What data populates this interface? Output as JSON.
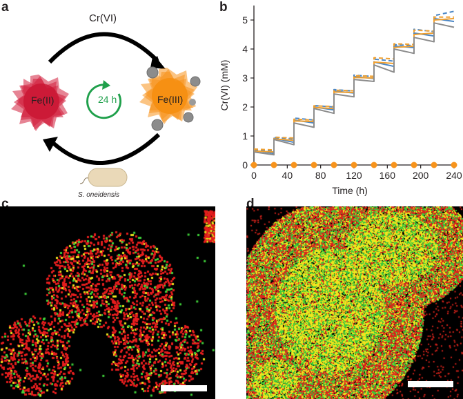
{
  "panels": {
    "a": {
      "letter": "a",
      "top_label": "Cr(VI)",
      "left_particle_label": "Fe(II)",
      "right_particle_label": "Fe(III)",
      "cycle_label": "24 h",
      "organism_label": "S. oneidensis",
      "colors": {
        "fe2": "#d21f3c",
        "fe3": "#f7941d",
        "arrow": "#000000",
        "cycle": "#1fa04b",
        "grey_particle": "#8c8c8c",
        "cell": "#ead9b8"
      }
    },
    "b": {
      "letter": "b"
    },
    "c": {
      "letter": "c",
      "colors": {
        "red": "#e41d1d",
        "green": "#3fd23a",
        "yellow": "#e8e21c"
      }
    },
    "d": {
      "letter": "d",
      "colors": {
        "red": "#d9241c",
        "green": "#39c93a",
        "yellow": "#f0e61e"
      }
    }
  },
  "chart_data": {
    "type": "line",
    "xlabel": "Time (h)",
    "ylabel": "Cr(VI) (mM)",
    "xlim": [
      0,
      240
    ],
    "ylim": [
      0,
      5.5
    ],
    "x_ticks": [
      0,
      40,
      80,
      120,
      160,
      200,
      240
    ],
    "x_tick_labels": [
      "0",
      "40",
      "80",
      "120",
      "160",
      "200",
      "240"
    ],
    "y_ticks": [
      0,
      1,
      2,
      3,
      4,
      5
    ],
    "y_tick_labels": [
      "0",
      "1",
      "2",
      "3",
      "4",
      "5"
    ],
    "series": [
      {
        "name": "blue solid",
        "color": "#4a86c5",
        "style": "solid",
        "x": [
          0,
          24,
          24,
          48,
          48,
          72,
          72,
          96,
          96,
          120,
          120,
          144,
          144,
          168,
          168,
          192,
          192,
          216,
          216,
          240
        ],
        "y": [
          0.5,
          0.4,
          0.92,
          0.78,
          1.55,
          1.45,
          2.0,
          1.9,
          2.55,
          2.48,
          3.05,
          2.98,
          3.55,
          3.4,
          4.1,
          4.05,
          4.55,
          4.45,
          5.05,
          4.95
        ]
      },
      {
        "name": "blue dashed",
        "color": "#4a86c5",
        "style": "dashed",
        "x": [
          0,
          24,
          24,
          48,
          48,
          72,
          72,
          96,
          96,
          120,
          120,
          144,
          144,
          168,
          168,
          192,
          192,
          216,
          216,
          240
        ],
        "y": [
          0.52,
          0.48,
          0.95,
          0.9,
          1.62,
          1.55,
          2.05,
          2.0,
          2.6,
          2.55,
          3.1,
          3.05,
          3.65,
          3.58,
          4.15,
          4.12,
          4.68,
          4.6,
          5.15,
          5.3
        ]
      },
      {
        "name": "orange solid",
        "color": "#f0a030",
        "style": "solid",
        "x": [
          0,
          24,
          24,
          48,
          48,
          72,
          72,
          96,
          96,
          120,
          120,
          144,
          144,
          168,
          168,
          192,
          192,
          216,
          216,
          240
        ],
        "y": [
          0.48,
          0.45,
          0.9,
          0.85,
          1.52,
          1.5,
          1.98,
          1.95,
          2.52,
          2.5,
          3.02,
          3.0,
          3.55,
          3.5,
          4.05,
          4.1,
          4.5,
          4.55,
          5.0,
          5.05
        ]
      },
      {
        "name": "orange dashed",
        "color": "#f0a030",
        "style": "dashed",
        "x": [
          0,
          24,
          24,
          48,
          48,
          72,
          72,
          96,
          96,
          120,
          120,
          144,
          144,
          168,
          168,
          192,
          192,
          216,
          216,
          240
        ],
        "y": [
          0.55,
          0.52,
          0.96,
          0.93,
          1.58,
          1.55,
          2.04,
          2.02,
          2.58,
          2.56,
          3.08,
          3.06,
          3.7,
          3.66,
          4.18,
          4.16,
          4.65,
          4.62,
          5.1,
          5.1
        ]
      },
      {
        "name": "grey solid",
        "color": "#8c8c8c",
        "style": "solid",
        "x": [
          0,
          24,
          24,
          48,
          48,
          72,
          72,
          96,
          96,
          120,
          120,
          144,
          144,
          168,
          168,
          192,
          192,
          216,
          216,
          240
        ],
        "y": [
          0.45,
          0.35,
          0.88,
          0.7,
          1.45,
          1.3,
          1.95,
          1.78,
          2.45,
          2.35,
          2.95,
          2.88,
          3.45,
          3.2,
          4.0,
          3.85,
          4.4,
          4.25,
          4.9,
          4.75
        ]
      },
      {
        "name": "orange markers",
        "color": "#f7941d",
        "style": "markers",
        "x": [
          0,
          24,
          48,
          72,
          96,
          120,
          144,
          168,
          192,
          216,
          240
        ],
        "y": [
          0,
          0,
          0,
          0,
          0,
          0,
          0,
          0,
          0,
          0,
          0
        ]
      }
    ]
  }
}
